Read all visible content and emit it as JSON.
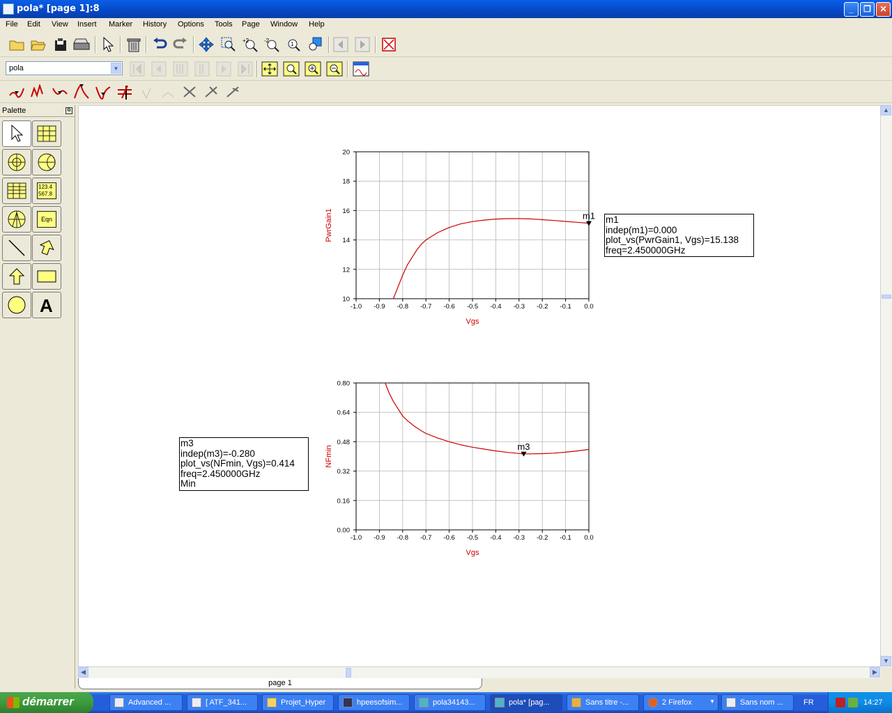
{
  "window": {
    "title": "pola* [page 1]:8"
  },
  "menu": [
    "File",
    "Edit",
    "View",
    "Insert",
    "Marker",
    "History",
    "Options",
    "Tools",
    "Page",
    "Window",
    "Help"
  ],
  "toolbar2": {
    "page_select_value": "pola"
  },
  "palette": {
    "title": "Palette",
    "numbers_icon_text": "123.4 567.8",
    "eqn_label": "Eqn"
  },
  "plots": [
    {
      "ylabel": "PwrGain1",
      "xlabel": "Vgs",
      "xticks": [
        "-1.0",
        "-0.9",
        "-0.8",
        "-0.7",
        "-0.6",
        "-0.5",
        "-0.4",
        "-0.3",
        "-0.2",
        "-0.1",
        "0.0"
      ],
      "yticks": [
        "10",
        "12",
        "14",
        "16",
        "18",
        "20"
      ],
      "marker_label": "m1",
      "marker_box": [
        "m1",
        "indep(m1)=0.000",
        "plot_vs(PwrGain1, Vgs)=15.138",
        "freq=2.450000GHz"
      ]
    },
    {
      "ylabel": "NFmin",
      "xlabel": "Vgs",
      "xticks": [
        "-1.0",
        "-0.9",
        "-0.8",
        "-0.7",
        "-0.6",
        "-0.5",
        "-0.4",
        "-0.3",
        "-0.2",
        "-0.1",
        "0.0"
      ],
      "yticks": [
        "0.00",
        "0.16",
        "0.32",
        "0.48",
        "0.64",
        "0.80"
      ],
      "marker_label": "m3",
      "marker_box": [
        "m3",
        "indep(m3)=-0.280",
        "plot_vs(NFmin, Vgs)=0.414",
        "freq=2.450000GHz",
        "Min"
      ]
    }
  ],
  "chart_data": [
    {
      "type": "line",
      "xlabel": "Vgs",
      "ylabel": "PwrGain1",
      "xlim": [
        -1.0,
        0.0
      ],
      "ylim": [
        10,
        20
      ],
      "grid": true,
      "series": [
        {
          "name": "PwrGain1",
          "color": "#cc0000",
          "x": [
            -0.84,
            -0.82,
            -0.8,
            -0.78,
            -0.76,
            -0.74,
            -0.72,
            -0.7,
            -0.65,
            -0.6,
            -0.55,
            -0.5,
            -0.45,
            -0.4,
            -0.35,
            -0.3,
            -0.25,
            -0.2,
            -0.15,
            -0.1,
            -0.05,
            0.0
          ],
          "y": [
            10.0,
            10.8,
            11.6,
            12.3,
            12.8,
            13.3,
            13.7,
            14.0,
            14.5,
            14.85,
            15.1,
            15.25,
            15.35,
            15.42,
            15.45,
            15.45,
            15.43,
            15.38,
            15.32,
            15.26,
            15.2,
            15.138
          ]
        }
      ],
      "markers": [
        {
          "name": "m1",
          "x": 0.0,
          "y": 15.138
        }
      ]
    },
    {
      "type": "line",
      "xlabel": "Vgs",
      "ylabel": "NFmin",
      "xlim": [
        -1.0,
        0.0
      ],
      "ylim": [
        0.0,
        0.8
      ],
      "grid": true,
      "series": [
        {
          "name": "NFmin",
          "color": "#cc0000",
          "x": [
            -0.875,
            -0.86,
            -0.84,
            -0.82,
            -0.8,
            -0.78,
            -0.75,
            -0.72,
            -0.7,
            -0.65,
            -0.6,
            -0.55,
            -0.5,
            -0.45,
            -0.4,
            -0.35,
            -0.3,
            -0.28,
            -0.25,
            -0.2,
            -0.15,
            -0.1,
            -0.05,
            0.0
          ],
          "y": [
            0.8,
            0.75,
            0.7,
            0.66,
            0.62,
            0.595,
            0.565,
            0.54,
            0.525,
            0.5,
            0.48,
            0.463,
            0.45,
            0.44,
            0.43,
            0.422,
            0.416,
            0.414,
            0.414,
            0.415,
            0.418,
            0.423,
            0.43,
            0.438
          ]
        }
      ],
      "markers": [
        {
          "name": "m3",
          "x": -0.28,
          "y": 0.414
        }
      ]
    }
  ],
  "scroll": {
    "page_tab": "page 1"
  },
  "taskbar": {
    "start_label": "démarrer",
    "tasks": [
      "Advanced ...",
      "[ ATF_341...",
      "Projet_Hyper",
      "hpeesofsim...",
      "pola34143...",
      "pola* [pag...",
      "Sans titre -...",
      "2 Firefox",
      "Sans nom ..."
    ],
    "lang": "FR",
    "clock": "14:27"
  },
  "colors": {
    "curve": "#cc0000",
    "axis_label": "#cc0000",
    "titlebar": "#0a5ee8"
  }
}
